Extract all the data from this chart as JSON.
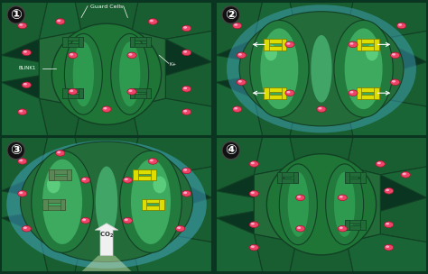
{
  "bg1": "#1e7a3e",
  "bg2": "#2a8a55",
  "bg3": "#2a9977",
  "bg4": "#1e7a3e",
  "cell_dark": "#195e30",
  "cell_med": "#1e7040",
  "cell_edge": "#154828",
  "gc_outer1": "#1e7535",
  "gc_inner1": "#2a9a4a",
  "gc_center1": "#3ab85a",
  "gc_outer2": "#2a9a55",
  "gc_inner2": "#3abb66",
  "gc_center2": "#55dd88",
  "gc_outer3": "#2aaa66",
  "gc_inner3": "#44cc77",
  "gc_center3": "#66ee99",
  "ch_green_dark": "#1e6635",
  "ch_green_light": "#2a8848",
  "ch_green_edge": "#154828",
  "ch_yellow": "#dddd00",
  "ch_yellow_edge": "#888800",
  "ch_faded": "#5a8855",
  "ch_faded_edge": "#3a5533",
  "ion_fill": "#ee4466",
  "ion_edge": "#aa1133",
  "ion_hl": "#ff99aa",
  "white": "#ffffff",
  "teal_glow": "#55aacc",
  "blue_glow": "#3388aa",
  "green_glow": "#55cc88",
  "co2_fill": "#f0f0f0",
  "co2_edge": "#cccccc",
  "label_guard": "Guard Cells",
  "label_blink1": "BLINK1",
  "label_kplus": "K+",
  "p1_num": "①",
  "p2_num": "②",
  "p3_num": "③",
  "p4_num": "④"
}
